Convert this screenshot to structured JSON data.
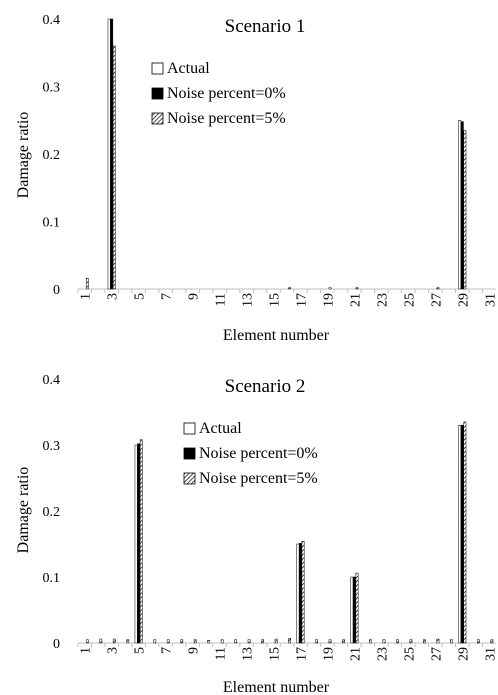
{
  "chart_data": [
    {
      "type": "bar",
      "title": "Scenario 1",
      "xlabel": "Element number",
      "ylabel": "Damage ratio",
      "ylim": [
        0,
        0.4
      ],
      "yticks": [
        "0",
        "0.1",
        "0.2",
        "0.3",
        "0.4"
      ],
      "categories": [
        1,
        2,
        3,
        4,
        5,
        6,
        7,
        8,
        9,
        10,
        11,
        12,
        13,
        14,
        15,
        16,
        17,
        18,
        19,
        20,
        21,
        22,
        23,
        24,
        25,
        26,
        27,
        28,
        29,
        30,
        31
      ],
      "xticklabels": [
        "1",
        "3",
        "5",
        "7",
        "9",
        "11",
        "13",
        "15",
        "17",
        "19",
        "21",
        "23",
        "25",
        "27",
        "29",
        "31"
      ],
      "legend_position": "top-center",
      "series": [
        {
          "name": "Actual",
          "style": "white",
          "values": [
            0,
            0,
            0.4,
            0,
            0,
            0,
            0,
            0,
            0,
            0,
            0,
            0,
            0,
            0,
            0,
            0,
            0,
            0,
            0,
            0,
            0,
            0,
            0,
            0,
            0,
            0,
            0,
            0,
            0.25,
            0,
            0
          ]
        },
        {
          "name": "Noise percent=0%",
          "style": "black",
          "values": [
            0,
            0,
            0.4,
            0,
            0,
            0,
            0,
            0,
            0,
            0,
            0,
            0,
            0,
            0,
            0,
            0,
            0,
            0,
            0,
            0,
            0,
            0,
            0,
            0,
            0,
            0,
            0,
            0,
            0.248,
            0,
            0
          ]
        },
        {
          "name": "Noise percent=5%",
          "style": "hatched",
          "values": [
            0.016,
            0,
            0.36,
            0,
            0,
            0,
            0,
            0,
            0,
            0,
            0,
            0,
            0,
            0,
            0,
            0.002,
            0,
            0,
            0.002,
            0,
            0.002,
            0,
            0,
            0,
            0,
            0,
            0.002,
            0,
            0.235,
            0,
            0
          ]
        }
      ]
    },
    {
      "type": "bar",
      "title": "Scenario 2",
      "xlabel": "Element number",
      "ylabel": "Damage ratio",
      "ylim": [
        0,
        0.4
      ],
      "yticks": [
        "0",
        "0.1",
        "0.2",
        "0.3",
        "0.4"
      ],
      "categories": [
        1,
        2,
        3,
        4,
        5,
        6,
        7,
        8,
        9,
        10,
        11,
        12,
        13,
        14,
        15,
        16,
        17,
        18,
        19,
        20,
        21,
        22,
        23,
        24,
        25,
        26,
        27,
        28,
        29,
        30,
        31
      ],
      "xticklabels": [
        "1",
        "3",
        "5",
        "7",
        "9",
        "11",
        "13",
        "15",
        "17",
        "19",
        "21",
        "23",
        "25",
        "27",
        "29",
        "31"
      ],
      "legend_position": "top-center",
      "series": [
        {
          "name": "Actual",
          "style": "white",
          "values": [
            0,
            0,
            0,
            0,
            0.3,
            0,
            0,
            0,
            0,
            0,
            0,
            0,
            0,
            0,
            0,
            0,
            0.15,
            0,
            0,
            0,
            0.1,
            0,
            0,
            0,
            0,
            0,
            0,
            0,
            0.33,
            0,
            0
          ]
        },
        {
          "name": "Noise percent=0%",
          "style": "black",
          "values": [
            0,
            0,
            0,
            0,
            0.302,
            0,
            0,
            0,
            0,
            0,
            0,
            0,
            0,
            0,
            0,
            0,
            0.151,
            0,
            0,
            0,
            0.1,
            0,
            0,
            0,
            0,
            0,
            0,
            0,
            0.33,
            0,
            0
          ]
        },
        {
          "name": "Noise percent=5%",
          "style": "hatched",
          "values": [
            0.005,
            0.006,
            0.006,
            0.005,
            0.308,
            0.005,
            0.005,
            0.005,
            0.005,
            0.004,
            0.005,
            0.005,
            0.005,
            0.005,
            0.006,
            0.007,
            0.154,
            0.005,
            0.005,
            0.005,
            0.106,
            0.005,
            0.005,
            0.005,
            0.005,
            0.005,
            0.006,
            0.005,
            0.335,
            0.005,
            0.005
          ]
        }
      ]
    }
  ]
}
